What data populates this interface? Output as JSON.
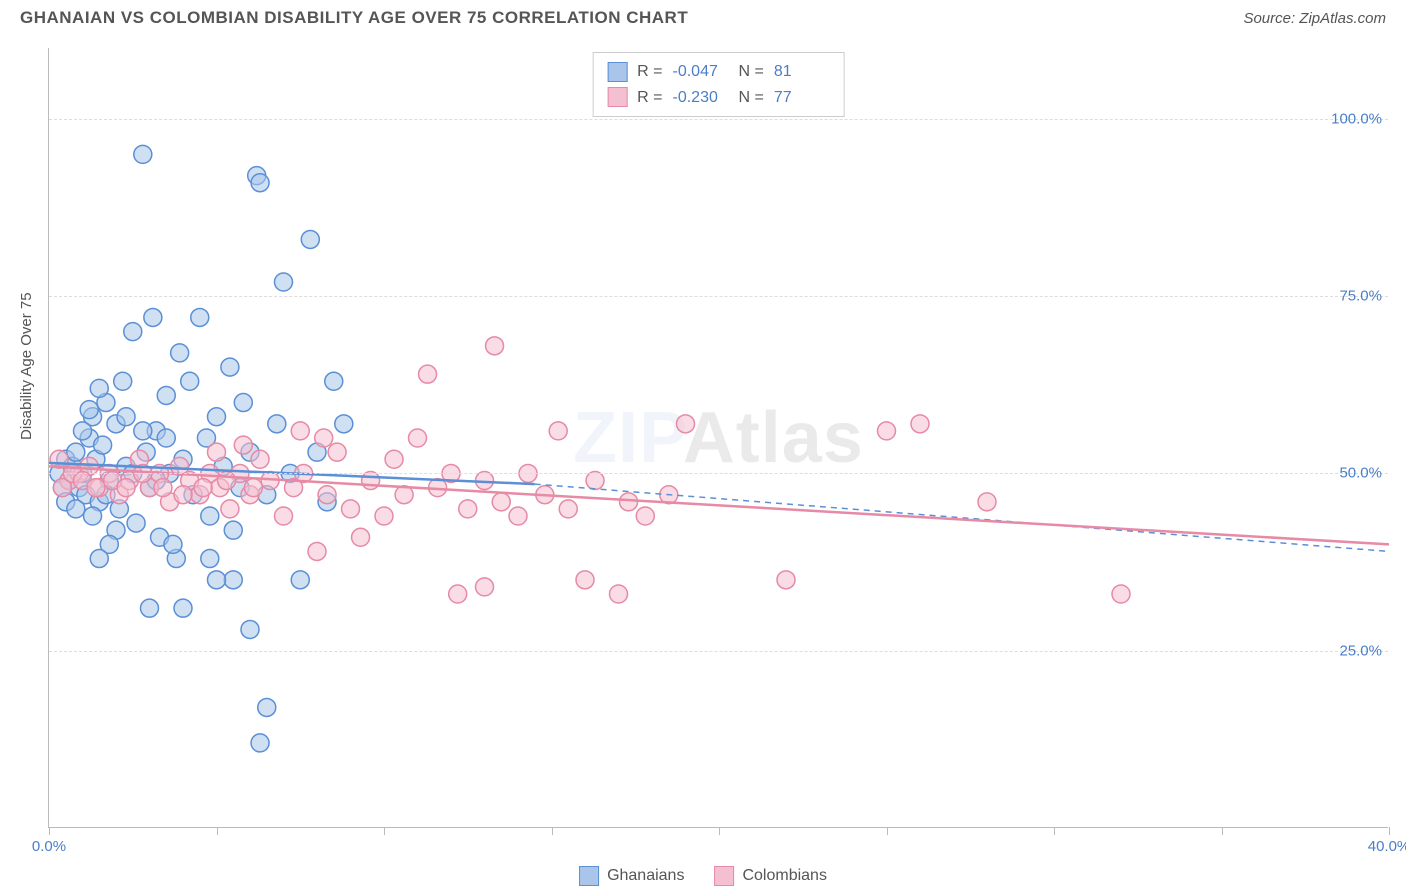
{
  "title": "GHANAIAN VS COLOMBIAN DISABILITY AGE OVER 75 CORRELATION CHART",
  "source": "Source: ZipAtlas.com",
  "y_axis_title": "Disability Age Over 75",
  "watermark_a": "ZIP",
  "watermark_b": "Atlas",
  "chart": {
    "type": "scatter",
    "xlim": [
      0,
      40
    ],
    "ylim": [
      0,
      110
    ],
    "y_ticks": [
      25,
      50,
      75,
      100
    ],
    "y_tick_labels": [
      "25.0%",
      "50.0%",
      "75.0%",
      "100.0%"
    ],
    "x_ticks": [
      0,
      5,
      10,
      15,
      20,
      25,
      30,
      35,
      40
    ],
    "x_tick_labels_shown": {
      "0": "0.0%",
      "40": "40.0%"
    },
    "grid_color": "#dddddd",
    "axis_color": "#bbbbbb",
    "background_color": "#ffffff",
    "marker_radius": 9,
    "marker_stroke_width": 1.5,
    "marker_fill_opacity": 0.25,
    "line_width": 2.5,
    "series": [
      {
        "name": "Ghanaians",
        "color_stroke": "#5b8fd6",
        "color_fill": "#a9c6ea",
        "R": "-0.047",
        "N": "81",
        "trend_solid": {
          "x1": 0,
          "y1": 51.5,
          "x2": 14.5,
          "y2": 48.5
        },
        "trend_dashed": {
          "x1": 14.5,
          "y1": 48.5,
          "x2": 40,
          "y2": 39
        },
        "points": [
          [
            0.3,
            50
          ],
          [
            0.4,
            48
          ],
          [
            0.5,
            52
          ],
          [
            0.6,
            49
          ],
          [
            0.7,
            51
          ],
          [
            0.8,
            53
          ],
          [
            0.9,
            48
          ],
          [
            1.0,
            50
          ],
          [
            1.1,
            47
          ],
          [
            1.2,
            55
          ],
          [
            1.3,
            58
          ],
          [
            1.4,
            52
          ],
          [
            1.5,
            46
          ],
          [
            1.6,
            54
          ],
          [
            1.7,
            60
          ],
          [
            1.8,
            49
          ],
          [
            2.0,
            57
          ],
          [
            2.1,
            45
          ],
          [
            2.2,
            63
          ],
          [
            2.3,
            51
          ],
          [
            2.5,
            70
          ],
          [
            2.6,
            43
          ],
          [
            2.8,
            95
          ],
          [
            2.9,
            53
          ],
          [
            3.0,
            48
          ],
          [
            3.1,
            72
          ],
          [
            3.2,
            56
          ],
          [
            3.3,
            41
          ],
          [
            3.5,
            61
          ],
          [
            3.6,
            50
          ],
          [
            3.8,
            38
          ],
          [
            3.9,
            67
          ],
          [
            4.0,
            52
          ],
          [
            4.2,
            63
          ],
          [
            4.3,
            47
          ],
          [
            4.5,
            72
          ],
          [
            4.7,
            55
          ],
          [
            4.8,
            44
          ],
          [
            5.0,
            58
          ],
          [
            5.2,
            51
          ],
          [
            5.4,
            65
          ],
          [
            5.5,
            35
          ],
          [
            5.7,
            48
          ],
          [
            5.8,
            60
          ],
          [
            6.0,
            53
          ],
          [
            6.2,
            92
          ],
          [
            6.3,
            91
          ],
          [
            6.5,
            47
          ],
          [
            6.8,
            57
          ],
          [
            7.0,
            77
          ],
          [
            7.2,
            50
          ],
          [
            7.5,
            35
          ],
          [
            7.8,
            83
          ],
          [
            8.0,
            53
          ],
          [
            8.3,
            46
          ],
          [
            8.5,
            63
          ],
          [
            8.8,
            57
          ],
          [
            6.0,
            28
          ],
          [
            6.3,
            12
          ],
          [
            4.0,
            31
          ],
          [
            3.0,
            31
          ],
          [
            6.5,
            17
          ],
          [
            5.0,
            35
          ],
          [
            5.5,
            42
          ],
          [
            2.0,
            42
          ],
          [
            1.8,
            40
          ],
          [
            1.5,
            38
          ],
          [
            3.7,
            40
          ],
          [
            4.8,
            38
          ],
          [
            1.0,
            56
          ],
          [
            1.2,
            59
          ],
          [
            1.5,
            62
          ],
          [
            2.3,
            58
          ],
          [
            2.8,
            56
          ],
          [
            3.5,
            55
          ],
          [
            0.5,
            46
          ],
          [
            0.8,
            45
          ],
          [
            1.3,
            44
          ],
          [
            1.7,
            47
          ],
          [
            2.5,
            50
          ],
          [
            3.2,
            49
          ]
        ]
      },
      {
        "name": "Colombians",
        "color_stroke": "#e68aa5",
        "color_fill": "#f4bfd0",
        "R": "-0.230",
        "N": "77",
        "trend_solid": {
          "x1": 0,
          "y1": 51,
          "x2": 40,
          "y2": 40
        },
        "trend_dashed": null,
        "points": [
          [
            0.3,
            52
          ],
          [
            0.6,
            49
          ],
          [
            0.9,
            50
          ],
          [
            1.2,
            51
          ],
          [
            1.5,
            48
          ],
          [
            1.8,
            50
          ],
          [
            2.1,
            47
          ],
          [
            2.4,
            49
          ],
          [
            2.7,
            52
          ],
          [
            3.0,
            48
          ],
          [
            3.3,
            50
          ],
          [
            3.6,
            46
          ],
          [
            3.9,
            51
          ],
          [
            4.2,
            49
          ],
          [
            4.5,
            47
          ],
          [
            4.8,
            50
          ],
          [
            5.1,
            48
          ],
          [
            5.4,
            45
          ],
          [
            5.7,
            50
          ],
          [
            6.0,
            47
          ],
          [
            6.3,
            52
          ],
          [
            6.6,
            49
          ],
          [
            7.0,
            44
          ],
          [
            7.3,
            48
          ],
          [
            7.6,
            50
          ],
          [
            8.0,
            39
          ],
          [
            8.3,
            47
          ],
          [
            8.6,
            53
          ],
          [
            9.0,
            45
          ],
          [
            9.3,
            41
          ],
          [
            9.6,
            49
          ],
          [
            10.0,
            44
          ],
          [
            10.3,
            52
          ],
          [
            10.6,
            47
          ],
          [
            11.0,
            55
          ],
          [
            11.3,
            64
          ],
          [
            11.6,
            48
          ],
          [
            12.0,
            50
          ],
          [
            12.5,
            45
          ],
          [
            13.0,
            49
          ],
          [
            13.3,
            68
          ],
          [
            13.5,
            46
          ],
          [
            14.0,
            44
          ],
          [
            14.3,
            50
          ],
          [
            14.8,
            47
          ],
          [
            15.2,
            56
          ],
          [
            15.5,
            45
          ],
          [
            16.0,
            35
          ],
          [
            16.3,
            49
          ],
          [
            17.0,
            33
          ],
          [
            17.3,
            46
          ],
          [
            17.8,
            44
          ],
          [
            18.5,
            47
          ],
          [
            19.0,
            57
          ],
          [
            22.0,
            35
          ],
          [
            25.0,
            56
          ],
          [
            26.0,
            57
          ],
          [
            28.0,
            46
          ],
          [
            32.0,
            33
          ],
          [
            12.2,
            33
          ],
          [
            13.0,
            34
          ],
          [
            5.0,
            53
          ],
          [
            5.8,
            54
          ],
          [
            7.5,
            56
          ],
          [
            8.2,
            55
          ],
          [
            0.4,
            48
          ],
          [
            0.7,
            50
          ],
          [
            1.0,
            49
          ],
          [
            1.4,
            48
          ],
          [
            1.9,
            49
          ],
          [
            2.3,
            48
          ],
          [
            2.8,
            50
          ],
          [
            3.4,
            48
          ],
          [
            4.0,
            47
          ],
          [
            4.6,
            48
          ],
          [
            5.3,
            49
          ],
          [
            6.1,
            48
          ]
        ]
      }
    ]
  },
  "stats_labels": {
    "R": "R =",
    "N": "N ="
  },
  "legend": {
    "series1": "Ghanaians",
    "series2": "Colombians"
  }
}
